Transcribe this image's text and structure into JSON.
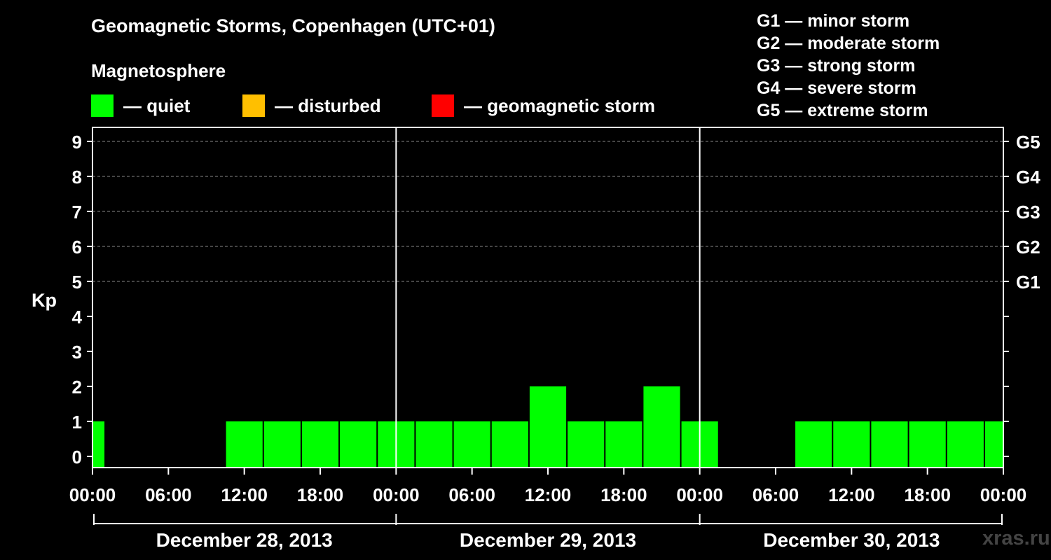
{
  "chart_data": {
    "type": "bar",
    "title": "Geomagnetic Storms, Copenhagen (UTC+01)",
    "subtitle": "Magnetosphere",
    "ylabel": "Kp",
    "ylim": [
      0,
      9
    ],
    "yticks": [
      "0",
      "1",
      "2",
      "3",
      "4",
      "5",
      "6",
      "7",
      "8",
      "9"
    ],
    "right_ticks": [
      {
        "kp": 5,
        "label": "G1"
      },
      {
        "kp": 6,
        "label": "G2"
      },
      {
        "kp": 7,
        "label": "G3"
      },
      {
        "kp": 8,
        "label": "G4"
      },
      {
        "kp": 9,
        "label": "G5"
      }
    ],
    "xlim_hours": [
      0,
      72
    ],
    "xticks": [
      {
        "hour": 0,
        "label": "00:00"
      },
      {
        "hour": 6,
        "label": "06:00"
      },
      {
        "hour": 12,
        "label": "12:00"
      },
      {
        "hour": 18,
        "label": "18:00"
      },
      {
        "hour": 24,
        "label": "00:00"
      },
      {
        "hour": 30,
        "label": "06:00"
      },
      {
        "hour": 36,
        "label": "12:00"
      },
      {
        "hour": 42,
        "label": "18:00"
      },
      {
        "hour": 48,
        "label": "00:00"
      },
      {
        "hour": 54,
        "label": "06:00"
      },
      {
        "hour": 60,
        "label": "12:00"
      },
      {
        "hour": 66,
        "label": "18:00"
      },
      {
        "hour": 72,
        "label": "00:00"
      }
    ],
    "days": [
      {
        "label": "December 28, 2013",
        "start": 0,
        "end": 24
      },
      {
        "label": "December 29, 2013",
        "start": 24,
        "end": 48
      },
      {
        "label": "December 30, 2013",
        "start": 48,
        "end": 72
      }
    ],
    "bars": [
      {
        "start": 0,
        "end": 1,
        "value": 1,
        "status": "quiet"
      },
      {
        "start": 10.5,
        "end": 13.5,
        "value": 1,
        "status": "quiet"
      },
      {
        "start": 13.5,
        "end": 16.5,
        "value": 1,
        "status": "quiet"
      },
      {
        "start": 16.5,
        "end": 19.5,
        "value": 1,
        "status": "quiet"
      },
      {
        "start": 19.5,
        "end": 22.5,
        "value": 1,
        "status": "quiet"
      },
      {
        "start": 22.5,
        "end": 25.5,
        "value": 1,
        "status": "quiet"
      },
      {
        "start": 25.5,
        "end": 28.5,
        "value": 1,
        "status": "quiet"
      },
      {
        "start": 28.5,
        "end": 31.5,
        "value": 1,
        "status": "quiet"
      },
      {
        "start": 31.5,
        "end": 34.5,
        "value": 1,
        "status": "quiet"
      },
      {
        "start": 34.5,
        "end": 37.5,
        "value": 2,
        "status": "quiet"
      },
      {
        "start": 37.5,
        "end": 40.5,
        "value": 1,
        "status": "quiet"
      },
      {
        "start": 40.5,
        "end": 43.5,
        "value": 1,
        "status": "quiet"
      },
      {
        "start": 43.5,
        "end": 46.5,
        "value": 2,
        "status": "quiet"
      },
      {
        "start": 46.5,
        "end": 49.5,
        "value": 1,
        "status": "quiet"
      },
      {
        "start": 55.5,
        "end": 58.5,
        "value": 1,
        "status": "quiet"
      },
      {
        "start": 58.5,
        "end": 61.5,
        "value": 1,
        "status": "quiet"
      },
      {
        "start": 61.5,
        "end": 64.5,
        "value": 1,
        "status": "quiet"
      },
      {
        "start": 64.5,
        "end": 67.5,
        "value": 1,
        "status": "quiet"
      },
      {
        "start": 67.5,
        "end": 70.5,
        "value": 1,
        "status": "quiet"
      },
      {
        "start": 70.5,
        "end": 72,
        "value": 1,
        "status": "quiet"
      }
    ],
    "legend": [
      {
        "status": "quiet",
        "label": "— quiet",
        "color": "#00ff00"
      },
      {
        "status": "disturbed",
        "label": "— disturbed",
        "color": "#ffbf00"
      },
      {
        "status": "storm",
        "label": "— geomagnetic storm",
        "color": "#ff0000"
      }
    ],
    "storm_scale": [
      "G1 — minor storm",
      "G2 — moderate storm",
      "G3 — strong storm",
      "G4 — severe storm",
      "G5 — extreme storm"
    ]
  },
  "watermark": "xras.ru"
}
